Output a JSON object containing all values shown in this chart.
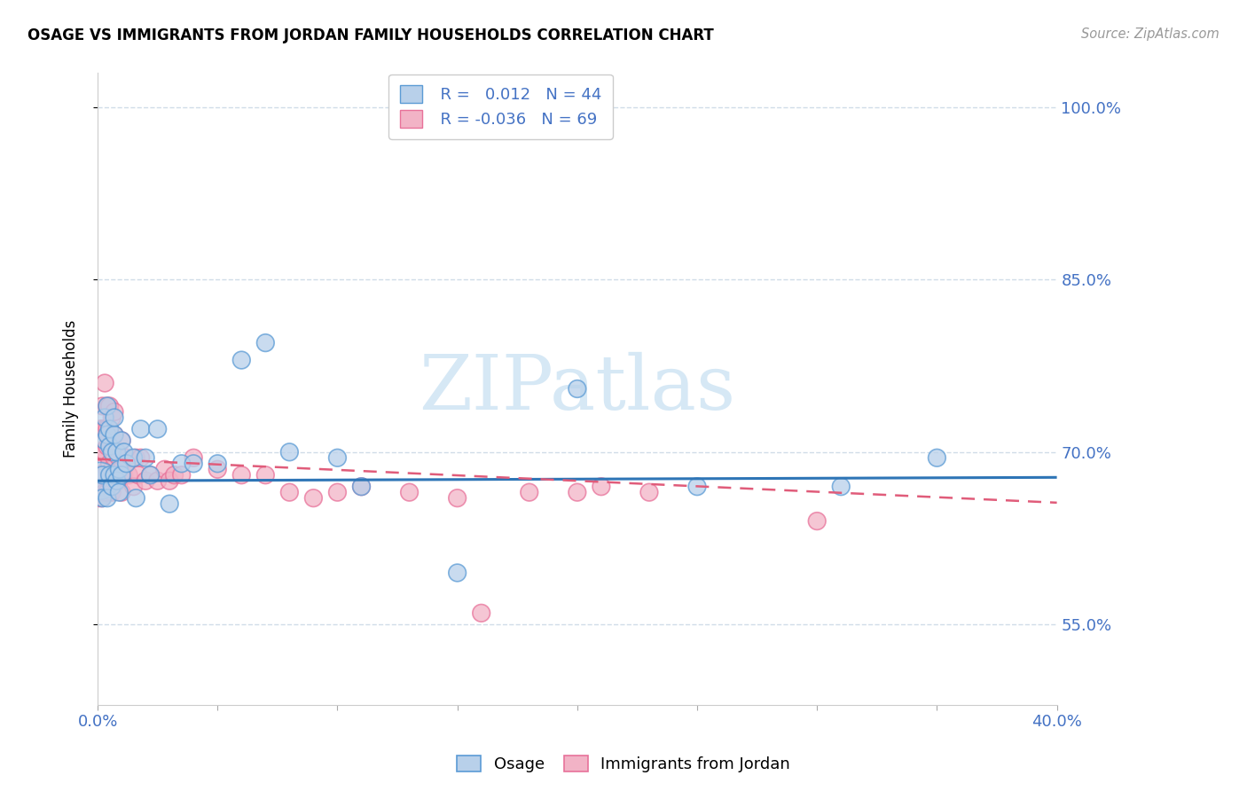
{
  "title": "OSAGE VS IMMIGRANTS FROM JORDAN FAMILY HOUSEHOLDS CORRELATION CHART",
  "source": "Source: ZipAtlas.com",
  "ylabel": "Family Households",
  "xlim": [
    0.0,
    0.4
  ],
  "ylim": [
    0.48,
    1.03
  ],
  "yticks": [
    0.55,
    0.7,
    0.85,
    1.0
  ],
  "ytick_labels": [
    "55.0%",
    "70.0%",
    "85.0%",
    "100.0%"
  ],
  "xticks": [
    0.0,
    0.05,
    0.1,
    0.15,
    0.2,
    0.25,
    0.3,
    0.35,
    0.4
  ],
  "color_osage_fill": "#b8d0ea",
  "color_osage_edge": "#5b9bd5",
  "color_jordan_fill": "#f2b3c6",
  "color_jordan_edge": "#e8729a",
  "color_osage_line": "#2e75b6",
  "color_jordan_line": "#e05c7a",
  "color_blue_text": "#4472c4",
  "color_grid": "#d0dce8",
  "color_ytick": "#4472c4",
  "watermark_color": "#d6e8f5",
  "osage_x": [
    0.001,
    0.002,
    0.002,
    0.003,
    0.003,
    0.004,
    0.004,
    0.004,
    0.005,
    0.005,
    0.005,
    0.006,
    0.006,
    0.007,
    0.007,
    0.007,
    0.008,
    0.008,
    0.009,
    0.009,
    0.01,
    0.01,
    0.011,
    0.012,
    0.015,
    0.016,
    0.018,
    0.02,
    0.022,
    0.025,
    0.03,
    0.035,
    0.04,
    0.05,
    0.06,
    0.07,
    0.08,
    0.1,
    0.11,
    0.15,
    0.2,
    0.25,
    0.31,
    0.35
  ],
  "osage_y": [
    0.675,
    0.66,
    0.68,
    0.71,
    0.73,
    0.66,
    0.715,
    0.74,
    0.68,
    0.705,
    0.72,
    0.67,
    0.7,
    0.68,
    0.715,
    0.73,
    0.675,
    0.7,
    0.665,
    0.685,
    0.68,
    0.71,
    0.7,
    0.69,
    0.695,
    0.66,
    0.72,
    0.695,
    0.68,
    0.72,
    0.655,
    0.69,
    0.69,
    0.69,
    0.78,
    0.795,
    0.7,
    0.695,
    0.67,
    0.595,
    0.755,
    0.67,
    0.67,
    0.695
  ],
  "osage_large_idx": 0,
  "osage_s": 200,
  "osage_s_large": 900,
  "jordan_x": [
    0.001,
    0.001,
    0.001,
    0.001,
    0.002,
    0.002,
    0.002,
    0.002,
    0.002,
    0.003,
    0.003,
    0.003,
    0.003,
    0.003,
    0.004,
    0.004,
    0.004,
    0.004,
    0.004,
    0.005,
    0.005,
    0.005,
    0.005,
    0.005,
    0.006,
    0.006,
    0.006,
    0.006,
    0.007,
    0.007,
    0.007,
    0.007,
    0.008,
    0.008,
    0.009,
    0.009,
    0.01,
    0.01,
    0.01,
    0.011,
    0.012,
    0.013,
    0.015,
    0.016,
    0.017,
    0.018,
    0.02,
    0.022,
    0.025,
    0.028,
    0.03,
    0.032,
    0.035,
    0.04,
    0.05,
    0.06,
    0.07,
    0.08,
    0.09,
    0.1,
    0.11,
    0.13,
    0.15,
    0.16,
    0.18,
    0.2,
    0.21,
    0.23,
    0.3
  ],
  "jordan_y": [
    0.66,
    0.68,
    0.7,
    0.72,
    0.66,
    0.68,
    0.7,
    0.72,
    0.74,
    0.665,
    0.68,
    0.7,
    0.72,
    0.76,
    0.665,
    0.685,
    0.705,
    0.72,
    0.74,
    0.675,
    0.69,
    0.71,
    0.72,
    0.74,
    0.665,
    0.685,
    0.71,
    0.73,
    0.675,
    0.695,
    0.715,
    0.735,
    0.68,
    0.7,
    0.675,
    0.695,
    0.665,
    0.685,
    0.71,
    0.68,
    0.695,
    0.68,
    0.67,
    0.695,
    0.68,
    0.695,
    0.675,
    0.68,
    0.675,
    0.685,
    0.675,
    0.68,
    0.68,
    0.695,
    0.685,
    0.68,
    0.68,
    0.665,
    0.66,
    0.665,
    0.67,
    0.665,
    0.66,
    0.56,
    0.665,
    0.665,
    0.67,
    0.665,
    0.64
  ],
  "jordan_s": 200,
  "trend_x": [
    0.0,
    0.4
  ],
  "osage_trend_y": [
    0.675,
    0.678
  ],
  "jordan_trend_y": [
    0.694,
    0.656
  ]
}
